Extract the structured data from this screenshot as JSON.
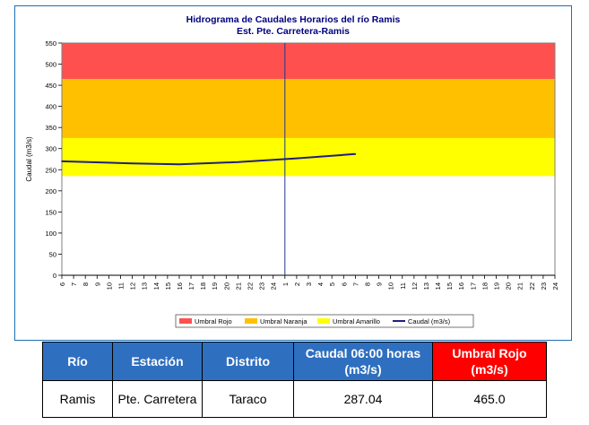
{
  "chart_data": {
    "type": "line",
    "title": "Hidrograma de Caudales Horarios del río Ramis",
    "subtitle": "Est. Pte. Carretera-Ramis",
    "ylabel": "Caudal (m3/s)",
    "ylim": [
      0,
      550
    ],
    "yticks": [
      0,
      50,
      100,
      150,
      200,
      250,
      300,
      350,
      400,
      450,
      500,
      550
    ],
    "x_tick_labels": [
      "6",
      "7",
      "8",
      "9",
      "10",
      "11",
      "12",
      "13",
      "14",
      "15",
      "16",
      "17",
      "18",
      "19",
      "20",
      "21",
      "22",
      "23",
      "24",
      "1",
      "2",
      "3",
      "4",
      "5",
      "6",
      "7",
      "8",
      "9",
      "10",
      "11",
      "12",
      "13",
      "14",
      "15",
      "16",
      "17",
      "18",
      "19",
      "20",
      "21",
      "22",
      "23",
      "24"
    ],
    "thresholds": [
      {
        "name": "Umbral Rojo",
        "from": 465,
        "to": 550,
        "color": "#ff5050"
      },
      {
        "name": "Umbral Naranja",
        "from": 325,
        "to": 465,
        "color": "#ffc000"
      },
      {
        "name": "Umbral Amarillo",
        "from": 235,
        "to": 325,
        "color": "#ffff00"
      }
    ],
    "series": [
      {
        "name": "Caudal (m3/s)",
        "color": "#1f1f7a",
        "x_index": [
          0,
          6,
          10,
          15,
          20,
          25
        ],
        "values": [
          270,
          265,
          263,
          268,
          277,
          287.04
        ]
      }
    ],
    "day_divider_index": 19,
    "legend_position": "bottom",
    "legend": [
      "Umbral Rojo",
      "Umbral Naranja",
      "Umbral Amarillo",
      "Caudal (m3/s)"
    ]
  },
  "table": {
    "headers": [
      "Río",
      "Estación",
      "Distrito",
      "Caudal  06:00 horas (m3/s)",
      "Umbral Rojo (m3/s)"
    ],
    "row": [
      "Ramis",
      "Pte. Carretera",
      "Taraco",
      "287.04",
      "465.0"
    ]
  },
  "colors": {
    "header_blue": "#2f6fc0",
    "header_red": "#ff0000",
    "frame_border": "#1f6fb4"
  }
}
